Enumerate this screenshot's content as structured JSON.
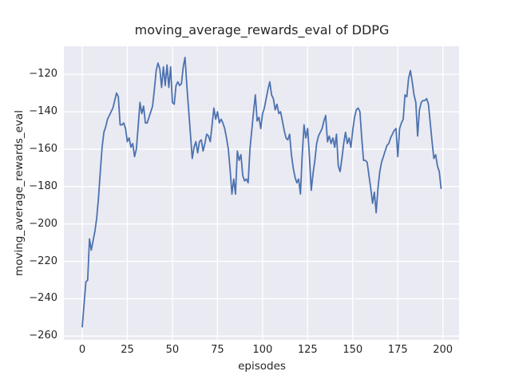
{
  "figure": {
    "background": "#ffffff"
  },
  "chart_data": {
    "type": "line",
    "title": "moving_average_rewards_eval of DDPG",
    "xlabel": "episodes",
    "ylabel": "moving_average_rewards_eval",
    "x_ticks": [
      0,
      25,
      50,
      75,
      100,
      125,
      150,
      175,
      200
    ],
    "y_ticks": [
      -120,
      -140,
      -160,
      -180,
      -200,
      -220,
      -240,
      -260
    ],
    "xlim": [
      -10.2,
      209.0
    ],
    "ylim": [
      -262,
      -105
    ],
    "grid": true,
    "legend_position": "none",
    "style": {
      "plot_background": "#eaeaf2",
      "grid_color": "#ffffff",
      "line_color": "#4c72b0",
      "text_color": "#262626",
      "line_width": 1.8
    },
    "series": [
      {
        "name": "moving_average_rewards_eval",
        "x_start": 0,
        "x_step": 1,
        "values": [
          -255,
          -243,
          -231,
          -230,
          -208,
          -214,
          -209,
          -204,
          -197,
          -186,
          -172,
          -159,
          -151,
          -148,
          -144,
          -142,
          -140,
          -138,
          -134,
          -130,
          -132,
          -147,
          -147,
          -146,
          -149,
          -156,
          -154,
          -159,
          -157,
          -164,
          -160,
          -148,
          -135,
          -141,
          -137,
          -146,
          -146,
          -143,
          -140,
          -137,
          -128,
          -118,
          -114,
          -117,
          -127,
          -116,
          -126,
          -115,
          -127,
          -116,
          -135,
          -136,
          -126,
          -124,
          -126,
          -125,
          -116,
          -111,
          -126,
          -139,
          -152,
          -165,
          -159,
          -156,
          -162,
          -156,
          -155,
          -161,
          -157,
          -152,
          -153,
          -156,
          -147,
          -138,
          -144,
          -140,
          -146,
          -144,
          -146,
          -149,
          -154,
          -160,
          -171,
          -184,
          -176,
          -184,
          -161,
          -166,
          -163,
          -174,
          -177,
          -176,
          -178,
          -160,
          -150,
          -140,
          -131,
          -145,
          -143,
          -149,
          -141,
          -138,
          -133,
          -128,
          -124,
          -131,
          -133,
          -139,
          -136,
          -141,
          -140,
          -145,
          -150,
          -154,
          -155,
          -152,
          -163,
          -170,
          -175,
          -178,
          -176,
          -184,
          -163,
          -147,
          -154,
          -149,
          -164,
          -182,
          -173,
          -166,
          -157,
          -153,
          -151,
          -149,
          -145,
          -142,
          -156,
          -153,
          -157,
          -154,
          -159,
          -152,
          -169,
          -172,
          -165,
          -157,
          -151,
          -157,
          -154,
          -159,
          -150,
          -143,
          -139,
          -138,
          -140,
          -154,
          -166,
          -166,
          -167,
          -174,
          -181,
          -189,
          -183,
          -194,
          -181,
          -172,
          -167,
          -164,
          -161,
          -158,
          -157,
          -154,
          -152,
          -150,
          -149,
          -164,
          -149,
          -146,
          -144,
          -131,
          -132,
          -122,
          -118,
          -124,
          -131,
          -135,
          -153,
          -139,
          -135,
          -134,
          -134,
          -133,
          -136,
          -146,
          -156,
          -165,
          -163,
          -169,
          -172,
          -181
        ]
      }
    ]
  }
}
